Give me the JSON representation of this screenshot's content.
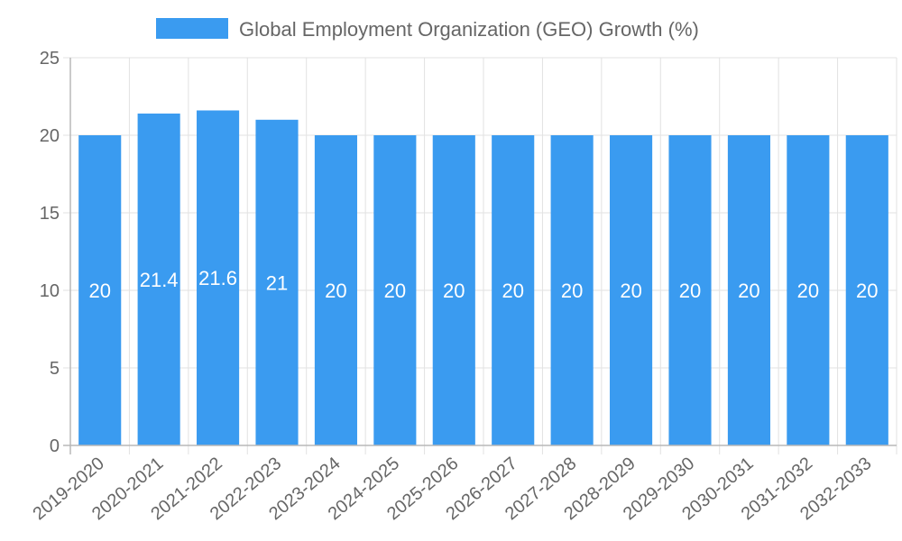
{
  "chart_data": {
    "type": "bar",
    "title": "",
    "xlabel": "",
    "ylabel": "",
    "ylim": [
      0,
      25
    ],
    "yticks": [
      0,
      5,
      10,
      15,
      20,
      25
    ],
    "grid": true,
    "legend_position": "top",
    "categories": [
      "2019-2020",
      "2020-2021",
      "2021-2022",
      "2022-2023",
      "2023-2024",
      "2024-2025",
      "2025-2026",
      "2026-2027",
      "2027-2028",
      "2028-2029",
      "2029-2030",
      "2030-2031",
      "2031-2032",
      "2032-2033"
    ],
    "series": [
      {
        "name": "Global Employment Organization (GEO) Growth (%)",
        "color": "#3a9bf0",
        "values": [
          20,
          21.4,
          21.6,
          21,
          20,
          20,
          20,
          20,
          20,
          20,
          20,
          20,
          20,
          20
        ],
        "labels": [
          "20",
          "21.4",
          "21.6",
          "21",
          "20",
          "20",
          "20",
          "20",
          "20",
          "20",
          "20",
          "20",
          "20",
          "20"
        ]
      }
    ]
  }
}
